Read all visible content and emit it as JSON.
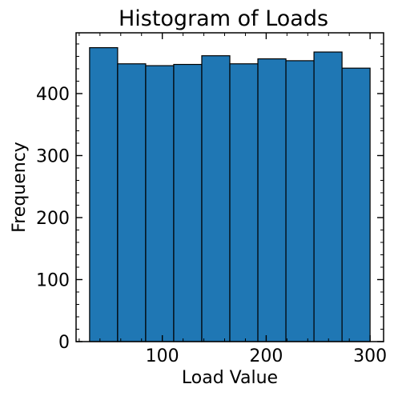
{
  "chart_data": {
    "type": "bar",
    "title": "Histogram of Loads",
    "xlabel": "Load Value",
    "ylabel": "Frequency",
    "bins": [
      {
        "start": 30,
        "end": 57,
        "count": 474
      },
      {
        "start": 57,
        "end": 84,
        "count": 448
      },
      {
        "start": 84,
        "end": 111,
        "count": 445
      },
      {
        "start": 111,
        "end": 138,
        "count": 447
      },
      {
        "start": 138,
        "end": 165,
        "count": 461
      },
      {
        "start": 165,
        "end": 192,
        "count": 448
      },
      {
        "start": 192,
        "end": 219,
        "count": 456
      },
      {
        "start": 219,
        "end": 246,
        "count": 453
      },
      {
        "start": 246,
        "end": 273,
        "count": 467
      },
      {
        "start": 273,
        "end": 300,
        "count": 441
      }
    ],
    "xlim": [
      17,
      313
    ],
    "ylim": [
      0,
      498
    ],
    "x_ticks": [
      100,
      200,
      300
    ],
    "y_ticks": [
      0,
      100,
      200,
      300,
      400
    ],
    "x_tick_labels": [
      "100",
      "200",
      "300"
    ],
    "y_tick_labels": [
      "0",
      "100",
      "200",
      "300",
      "400"
    ],
    "bar_color": "#1f77b4",
    "edge_color": "#000000",
    "grid": false,
    "legend": "none"
  }
}
